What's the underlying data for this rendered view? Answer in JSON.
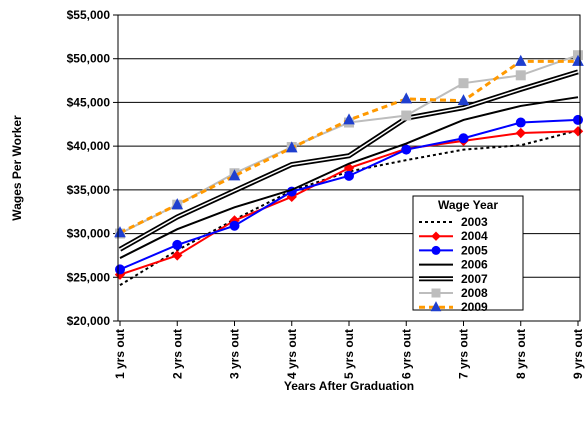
{
  "chart_data": {
    "type": "line",
    "title": "",
    "xlabel": "Years After Graduation",
    "ylabel": "Wages Per Worker",
    "categories": [
      "1 yrs out",
      "2 yrs out",
      "3 yrs out",
      "4 yrs out",
      "5 yrs out",
      "6 yrs out",
      "7 yrs out",
      "8 yrs out",
      "9 yrs out"
    ],
    "ylim": [
      20000,
      55000
    ],
    "yticks": [
      20000,
      25000,
      30000,
      35000,
      40000,
      45000,
      50000,
      55000
    ],
    "ytick_labels": [
      "$20,000",
      "$25,000",
      "$30,000",
      "$35,000",
      "$40,000",
      "$45,000",
      "$50,000",
      "$55,000"
    ],
    "grid": true,
    "legend_title": "Wage Year",
    "legend_position": "right",
    "series": [
      {
        "name": "2003",
        "values": [
          24100,
          28100,
          31600,
          34900,
          37100,
          38400,
          39600,
          40100,
          41800
        ],
        "color": "#000000",
        "style": "dotted",
        "marker": "none"
      },
      {
        "name": "2004",
        "values": [
          25300,
          27500,
          31500,
          34200,
          37500,
          39700,
          40600,
          41500,
          41700
        ],
        "color": "#ff0000",
        "style": "solid",
        "marker": "diamond"
      },
      {
        "name": "2005",
        "values": [
          25900,
          28700,
          30900,
          34800,
          36600,
          39600,
          40900,
          42700,
          43000
        ],
        "color": "#0000ff",
        "style": "solid",
        "marker": "circle"
      },
      {
        "name": "2006",
        "values": [
          27200,
          30500,
          33000,
          35000,
          38000,
          40300,
          43000,
          44600,
          45600
        ],
        "color": "#000000",
        "style": "solid",
        "marker": "none"
      },
      {
        "name": "2007",
        "values": [
          28200,
          31900,
          34900,
          37900,
          38900,
          43200,
          44400,
          46500,
          48500
        ],
        "color": "#000000",
        "style": "double",
        "marker": "none"
      },
      {
        "name": "2008",
        "values": [
          30000,
          33300,
          36900,
          39900,
          42700,
          43500,
          47200,
          48100,
          50400
        ],
        "color": "#bdbdbd",
        "style": "solid",
        "marker": "square"
      },
      {
        "name": "2009",
        "values": [
          30100,
          33300,
          36600,
          39800,
          43000,
          45400,
          45200,
          49700,
          49700
        ],
        "color": "#ff9900",
        "style": "dashed",
        "marker": "triangle"
      }
    ]
  }
}
